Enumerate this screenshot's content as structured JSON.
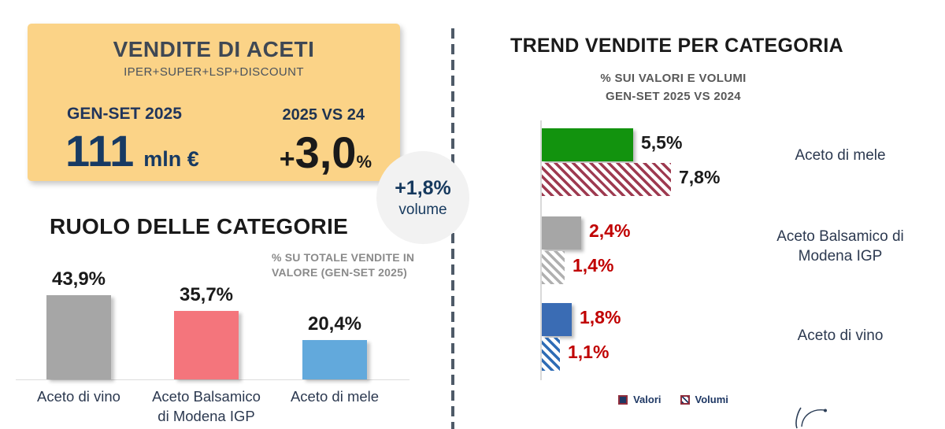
{
  "summary_card": {
    "title": "VENDITE DI ACETI",
    "subtitle": "IPER+SUPER+LSP+DISCOUNT",
    "period_label": "GEN-SET 2025",
    "comparison_label": "2025 VS 24",
    "value": "111",
    "value_unit": "mln €",
    "delta_sign": "+",
    "delta_value": "3,0",
    "delta_unit": "%",
    "bg_color": "#fbd387"
  },
  "volume_badge": {
    "value": "+1,8%",
    "label": "volume"
  },
  "colors": {
    "navy": "#16395e",
    "red_value_label": "#c00000",
    "divider": "#4e5a68",
    "axis": "#d9d9d9"
  },
  "chart_data": [
    {
      "type": "bar",
      "title": "RUOLO DELLE CATEGORIE",
      "note_lines": [
        "% SU TOTALE VENDITE IN",
        "VALORE (GEN-SET 2025)"
      ],
      "categories": [
        "Aceto di vino",
        "Aceto Balsamico di Modena IGP",
        "Aceto di mele"
      ],
      "values": [
        43.9,
        35.7,
        20.4
      ],
      "value_labels": [
        "43,9%",
        "35,7%",
        "20,4%"
      ],
      "bar_colors": [
        "#a6a6a6",
        "#f4757c",
        "#62a9dc"
      ],
      "ylim": [
        0,
        50
      ],
      "grid": false,
      "unit": "%"
    },
    {
      "type": "bar-horizontal",
      "title": "TREND VENDITE PER CATEGORIA",
      "subtitle_lines": [
        "% SUI VALORI E VOLUMI",
        "GEN-SET 2025 VS 2024"
      ],
      "categories": [
        "Aceto di mele",
        "Aceto Balsamico di Modena IGP",
        "Aceto di vino"
      ],
      "series": [
        {
          "name": "Valori",
          "style": "solid",
          "values": [
            5.5,
            2.4,
            1.8
          ],
          "labels": [
            "5,5%",
            "2,4%",
            "1,8%"
          ],
          "colors": [
            "#12930e",
            "#a6a6a6",
            "#3a6cb4"
          ]
        },
        {
          "name": "Volumi",
          "style": "hatched",
          "values": [
            7.8,
            1.4,
            1.1
          ],
          "labels": [
            "7,8%",
            "1,4%",
            "1,1%"
          ],
          "colors": [
            "#9e3a50",
            "#b0b0b0",
            "#2e6cb5"
          ]
        }
      ],
      "label_colors": [
        "#1a1a1a",
        "#c00000",
        "#c00000"
      ],
      "xlim": [
        0,
        8
      ],
      "grid": false,
      "legend": [
        "Valori",
        "Volumi"
      ],
      "legend_position": "bottom",
      "unit": "%"
    }
  ]
}
